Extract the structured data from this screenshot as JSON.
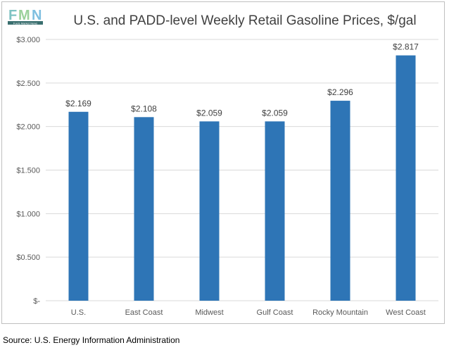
{
  "logo": {
    "text": "Fuels Market News",
    "letters": "FMN"
  },
  "chart_data": {
    "type": "bar",
    "title": "U.S. and PADD-level Weekly Retail Gasoline Prices, $/gal",
    "categories": [
      "U.S.",
      "East Coast",
      "Midwest",
      "Gulf Coast",
      "Rocky Mountain",
      "West Coast"
    ],
    "values": [
      2.169,
      2.108,
      2.059,
      2.059,
      2.296,
      2.817
    ],
    "data_labels": [
      "$2.169",
      "$2.108",
      "$2.059",
      "$2.059",
      "$2.296",
      "$2.817"
    ],
    "ylim": [
      0,
      3.0
    ],
    "yticks": [
      0,
      0.5,
      1.0,
      1.5,
      2.0,
      2.5,
      3.0
    ],
    "ytick_labels": [
      "$-",
      "$0.500",
      "$1.000",
      "$1.500",
      "$2.000",
      "$2.500",
      "$3.000"
    ],
    "xlabel": "",
    "ylabel": "",
    "grid": true,
    "bar_color": "#2e75b6",
    "grid_color": "#d9d9d9"
  },
  "source": "Source: U.S. Energy Information Administration"
}
